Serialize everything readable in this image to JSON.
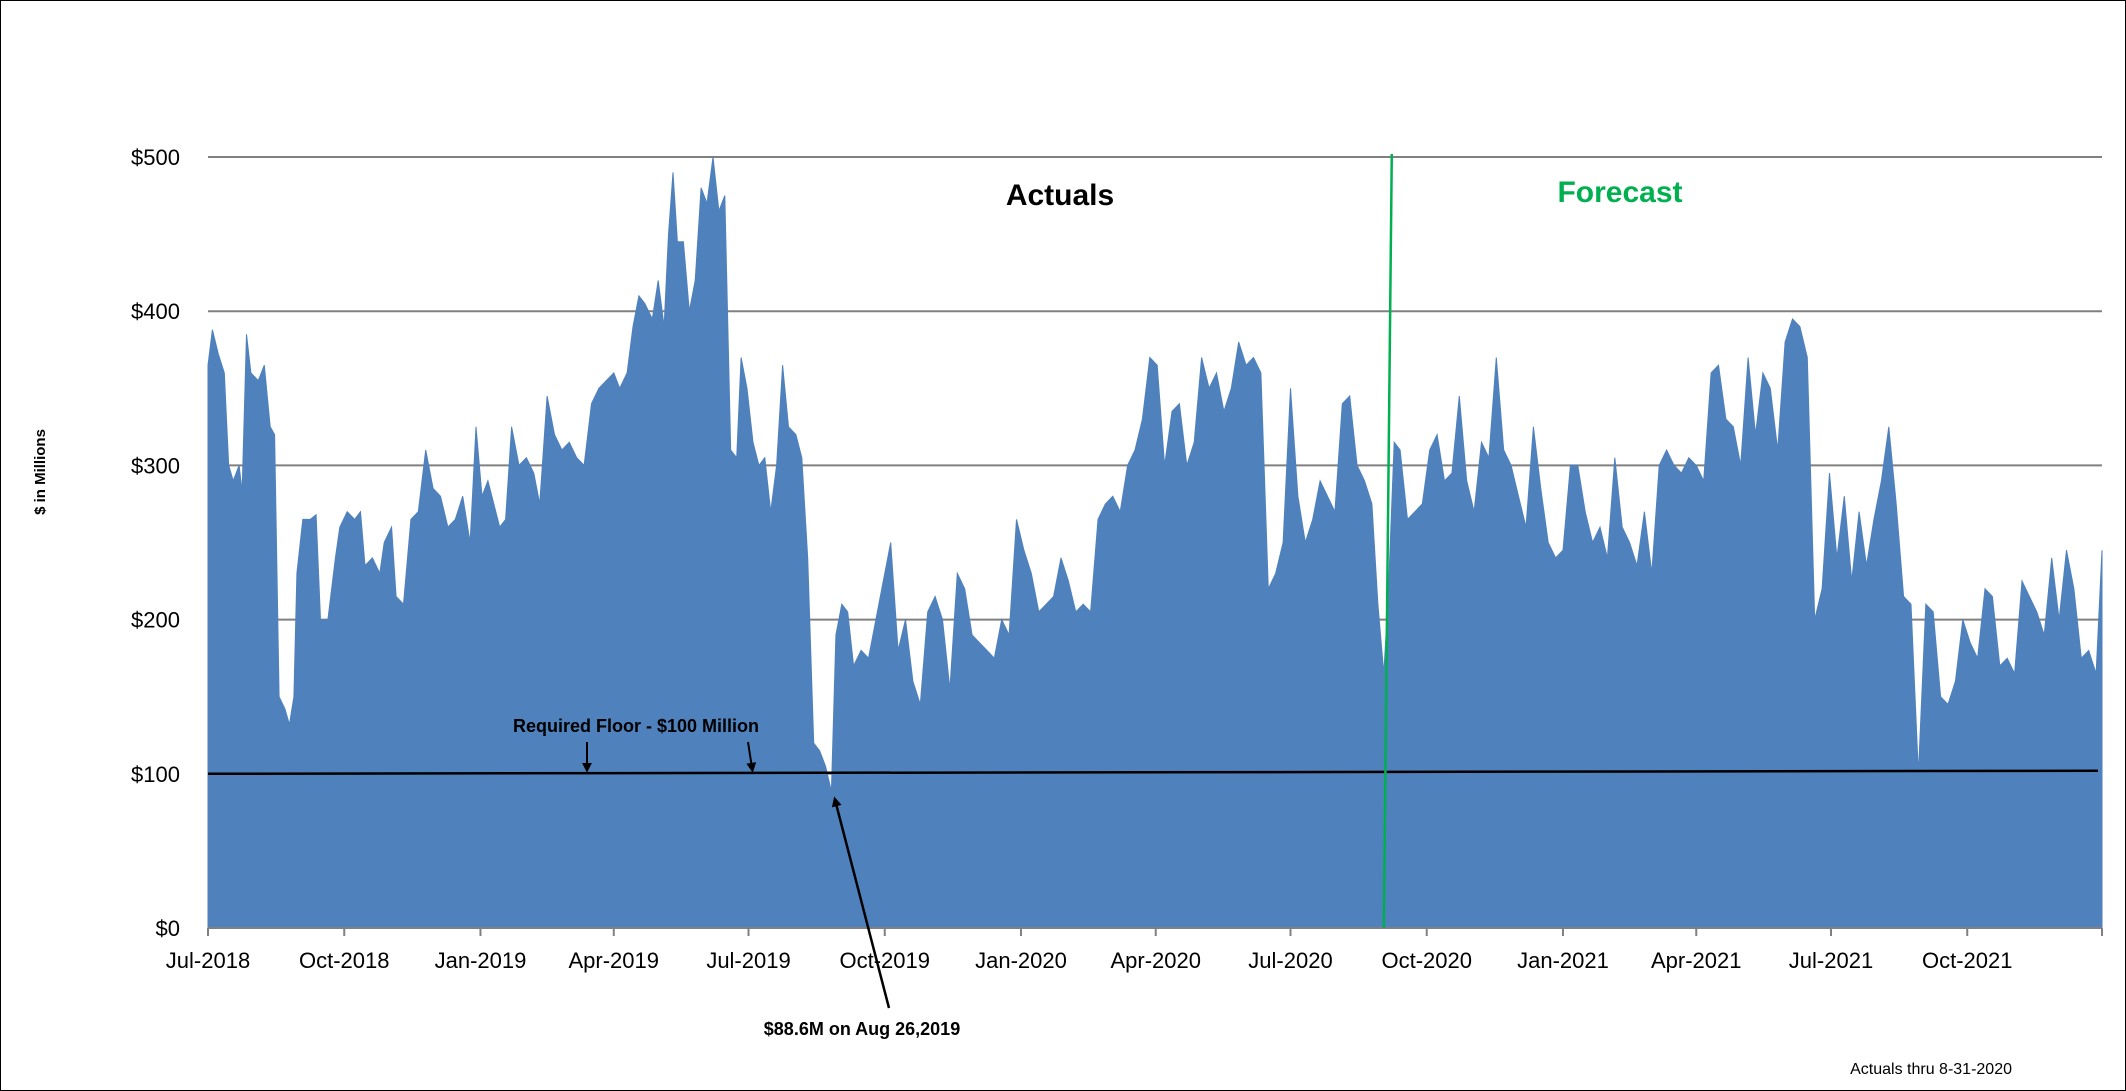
{
  "chart_data": {
    "type": "area",
    "ylabel": "$ in Millions",
    "ylim": [
      0,
      500
    ],
    "y_ticks": [
      "$0",
      "$100",
      "$200",
      "$300",
      "$400",
      "$500"
    ],
    "x_range": [
      "2018-07-01",
      "2021-12-31"
    ],
    "x_ticks": [
      "Jul-2018",
      "Oct-2018",
      "Jan-2019",
      "Apr-2019",
      "Jul-2019",
      "Oct-2019",
      "Jan-2020",
      "Apr-2020",
      "Jul-2020",
      "Oct-2020",
      "Jan-2021",
      "Apr-2021",
      "Jul-2021",
      "Oct-2021"
    ],
    "grid": true,
    "fill_color": "#4F81BD",
    "divider_color": "#00B050",
    "series": [
      {
        "values": [
          [
            "2018-07-01",
            365
          ],
          [
            "2018-07-04",
            388
          ],
          [
            "2018-07-08",
            372
          ],
          [
            "2018-07-12",
            360
          ],
          [
            "2018-07-15",
            300
          ],
          [
            "2018-07-18",
            290
          ],
          [
            "2018-07-22",
            300
          ],
          [
            "2018-07-24",
            283
          ],
          [
            "2018-07-27",
            385
          ],
          [
            "2018-07-30",
            360
          ],
          [
            "2018-08-04",
            355
          ],
          [
            "2018-08-08",
            365
          ],
          [
            "2018-08-12",
            325
          ],
          [
            "2018-08-15",
            320
          ],
          [
            "2018-08-18",
            150
          ],
          [
            "2018-08-22",
            142
          ],
          [
            "2018-08-25",
            132
          ],
          [
            "2018-08-28",
            150
          ],
          [
            "2018-08-30",
            230
          ],
          [
            "2018-09-03",
            265
          ],
          [
            "2018-09-08",
            265
          ],
          [
            "2018-09-12",
            268
          ],
          [
            "2018-09-15",
            200
          ],
          [
            "2018-09-20",
            200
          ],
          [
            "2018-09-25",
            240
          ],
          [
            "2018-09-28",
            260
          ],
          [
            "2018-10-03",
            270
          ],
          [
            "2018-10-08",
            265
          ],
          [
            "2018-10-12",
            270
          ],
          [
            "2018-10-15",
            235
          ],
          [
            "2018-10-20",
            240
          ],
          [
            "2018-10-25",
            230
          ],
          [
            "2018-10-28",
            250
          ],
          [
            "2018-11-02",
            260
          ],
          [
            "2018-11-05",
            215
          ],
          [
            "2018-11-10",
            210
          ],
          [
            "2018-11-15",
            265
          ],
          [
            "2018-11-20",
            270
          ],
          [
            "2018-11-25",
            310
          ],
          [
            "2018-11-30",
            285
          ],
          [
            "2018-12-05",
            280
          ],
          [
            "2018-12-10",
            260
          ],
          [
            "2018-12-15",
            265
          ],
          [
            "2018-12-20",
            280
          ],
          [
            "2018-12-25",
            250
          ],
          [
            "2018-12-29",
            325
          ],
          [
            "2019-01-02",
            280
          ],
          [
            "2019-01-06",
            290
          ],
          [
            "2019-01-10",
            275
          ],
          [
            "2019-01-14",
            260
          ],
          [
            "2019-01-18",
            265
          ],
          [
            "2019-01-22",
            325
          ],
          [
            "2019-01-27",
            300
          ],
          [
            "2019-02-01",
            305
          ],
          [
            "2019-02-06",
            295
          ],
          [
            "2019-02-10",
            275
          ],
          [
            "2019-02-15",
            345
          ],
          [
            "2019-02-20",
            320
          ],
          [
            "2019-02-25",
            310
          ],
          [
            "2019-03-02",
            315
          ],
          [
            "2019-03-07",
            305
          ],
          [
            "2019-03-12",
            300
          ],
          [
            "2019-03-17",
            340
          ],
          [
            "2019-03-22",
            350
          ],
          [
            "2019-03-27",
            355
          ],
          [
            "2019-04-01",
            360
          ],
          [
            "2019-04-05",
            350
          ],
          [
            "2019-04-10",
            360
          ],
          [
            "2019-04-14",
            390
          ],
          [
            "2019-04-18",
            410
          ],
          [
            "2019-04-22",
            405
          ],
          [
            "2019-04-27",
            395
          ],
          [
            "2019-05-01",
            420
          ],
          [
            "2019-05-05",
            390
          ],
          [
            "2019-05-08",
            450
          ],
          [
            "2019-05-11",
            490
          ],
          [
            "2019-05-14",
            445
          ],
          [
            "2019-05-18",
            445
          ],
          [
            "2019-05-22",
            400
          ],
          [
            "2019-05-26",
            420
          ],
          [
            "2019-05-30",
            480
          ],
          [
            "2019-06-03",
            470
          ],
          [
            "2019-06-07",
            500
          ],
          [
            "2019-06-11",
            465
          ],
          [
            "2019-06-15",
            475
          ],
          [
            "2019-06-19",
            310
          ],
          [
            "2019-06-23",
            305
          ],
          [
            "2019-06-26",
            370
          ],
          [
            "2019-06-30",
            350
          ],
          [
            "2019-07-04",
            315
          ],
          [
            "2019-07-08",
            300
          ],
          [
            "2019-07-12",
            305
          ],
          [
            "2019-07-16",
            270
          ],
          [
            "2019-07-20",
            300
          ],
          [
            "2019-07-24",
            365
          ],
          [
            "2019-07-28",
            325
          ],
          [
            "2019-08-02",
            320
          ],
          [
            "2019-08-06",
            305
          ],
          [
            "2019-08-10",
            240
          ],
          [
            "2019-08-14",
            120
          ],
          [
            "2019-08-18",
            115
          ],
          [
            "2019-08-22",
            105
          ],
          [
            "2019-08-26",
            88.6
          ],
          [
            "2019-08-29",
            190
          ],
          [
            "2019-09-02",
            210
          ],
          [
            "2019-09-06",
            205
          ],
          [
            "2019-09-10",
            170
          ],
          [
            "2019-09-15",
            180
          ],
          [
            "2019-09-20",
            175
          ],
          [
            "2019-09-25",
            200
          ],
          [
            "2019-09-30",
            225
          ],
          [
            "2019-10-05",
            250
          ],
          [
            "2019-10-10",
            180
          ],
          [
            "2019-10-15",
            200
          ],
          [
            "2019-10-20",
            160
          ],
          [
            "2019-10-25",
            145
          ],
          [
            "2019-10-30",
            205
          ],
          [
            "2019-11-04",
            215
          ],
          [
            "2019-11-09",
            200
          ],
          [
            "2019-11-14",
            155
          ],
          [
            "2019-11-19",
            230
          ],
          [
            "2019-11-24",
            220
          ],
          [
            "2019-11-29",
            190
          ],
          [
            "2019-12-04",
            185
          ],
          [
            "2019-12-09",
            180
          ],
          [
            "2019-12-14",
            175
          ],
          [
            "2019-12-19",
            200
          ],
          [
            "2019-12-24",
            190
          ],
          [
            "2019-12-29",
            265
          ],
          [
            "2020-01-03",
            245
          ],
          [
            "2020-01-08",
            230
          ],
          [
            "2020-01-13",
            205
          ],
          [
            "2020-01-18",
            210
          ],
          [
            "2020-01-23",
            215
          ],
          [
            "2020-01-28",
            240
          ],
          [
            "2020-02-02",
            225
          ],
          [
            "2020-02-07",
            205
          ],
          [
            "2020-02-12",
            210
          ],
          [
            "2020-02-17",
            205
          ],
          [
            "2020-02-22",
            265
          ],
          [
            "2020-02-27",
            275
          ],
          [
            "2020-03-03",
            280
          ],
          [
            "2020-03-08",
            270
          ],
          [
            "2020-03-13",
            300
          ],
          [
            "2020-03-18",
            310
          ],
          [
            "2020-03-23",
            330
          ],
          [
            "2020-03-28",
            370
          ],
          [
            "2020-04-02",
            365
          ],
          [
            "2020-04-07",
            300
          ],
          [
            "2020-04-12",
            335
          ],
          [
            "2020-04-17",
            340
          ],
          [
            "2020-04-22",
            300
          ],
          [
            "2020-04-27",
            315
          ],
          [
            "2020-05-02",
            370
          ],
          [
            "2020-05-07",
            350
          ],
          [
            "2020-05-12",
            360
          ],
          [
            "2020-05-17",
            335
          ],
          [
            "2020-05-22",
            350
          ],
          [
            "2020-05-27",
            380
          ],
          [
            "2020-06-01",
            365
          ],
          [
            "2020-06-06",
            370
          ],
          [
            "2020-06-11",
            360
          ],
          [
            "2020-06-16",
            220
          ],
          [
            "2020-06-21",
            230
          ],
          [
            "2020-06-26",
            250
          ],
          [
            "2020-07-01",
            350
          ],
          [
            "2020-07-06",
            280
          ],
          [
            "2020-07-11",
            250
          ],
          [
            "2020-07-16",
            265
          ],
          [
            "2020-07-21",
            290
          ],
          [
            "2020-07-26",
            280
          ],
          [
            "2020-07-31",
            270
          ],
          [
            "2020-08-05",
            340
          ],
          [
            "2020-08-10",
            345
          ],
          [
            "2020-08-15",
            300
          ],
          [
            "2020-08-20",
            290
          ],
          [
            "2020-08-25",
            275
          ],
          [
            "2020-08-29",
            210
          ],
          [
            "2020-09-02",
            165
          ],
          [
            "2020-09-05",
            215
          ],
          [
            "2020-09-09",
            315
          ],
          [
            "2020-09-13",
            310
          ],
          [
            "2020-09-18",
            265
          ],
          [
            "2020-09-23",
            270
          ],
          [
            "2020-09-28",
            275
          ],
          [
            "2020-10-03",
            310
          ],
          [
            "2020-10-08",
            320
          ],
          [
            "2020-10-13",
            290
          ],
          [
            "2020-10-18",
            295
          ],
          [
            "2020-10-23",
            345
          ],
          [
            "2020-10-28",
            290
          ],
          [
            "2020-11-02",
            270
          ],
          [
            "2020-11-07",
            315
          ],
          [
            "2020-11-12",
            305
          ],
          [
            "2020-11-17",
            370
          ],
          [
            "2020-11-22",
            310
          ],
          [
            "2020-11-27",
            300
          ],
          [
            "2020-12-02",
            280
          ],
          [
            "2020-12-07",
            260
          ],
          [
            "2020-12-12",
            325
          ],
          [
            "2020-12-17",
            285
          ],
          [
            "2020-12-22",
            250
          ],
          [
            "2020-12-27",
            240
          ],
          [
            "2021-01-01",
            245
          ],
          [
            "2021-01-06",
            300
          ],
          [
            "2021-01-11",
            300
          ],
          [
            "2021-01-16",
            270
          ],
          [
            "2021-01-21",
            250
          ],
          [
            "2021-01-26",
            260
          ],
          [
            "2021-01-31",
            240
          ],
          [
            "2021-02-05",
            305
          ],
          [
            "2021-02-10",
            260
          ],
          [
            "2021-02-15",
            250
          ],
          [
            "2021-02-20",
            235
          ],
          [
            "2021-02-25",
            270
          ],
          [
            "2021-03-02",
            230
          ],
          [
            "2021-03-07",
            300
          ],
          [
            "2021-03-12",
            310
          ],
          [
            "2021-03-17",
            300
          ],
          [
            "2021-03-22",
            295
          ],
          [
            "2021-03-27",
            305
          ],
          [
            "2021-04-01",
            300
          ],
          [
            "2021-04-06",
            290
          ],
          [
            "2021-04-11",
            360
          ],
          [
            "2021-04-16",
            365
          ],
          [
            "2021-04-21",
            330
          ],
          [
            "2021-04-26",
            325
          ],
          [
            "2021-05-01",
            300
          ],
          [
            "2021-05-06",
            370
          ],
          [
            "2021-05-11",
            320
          ],
          [
            "2021-05-16",
            360
          ],
          [
            "2021-05-21",
            350
          ],
          [
            "2021-05-26",
            310
          ],
          [
            "2021-05-31",
            380
          ],
          [
            "2021-06-05",
            395
          ],
          [
            "2021-06-10",
            390
          ],
          [
            "2021-06-15",
            370
          ],
          [
            "2021-06-20",
            200
          ],
          [
            "2021-06-25",
            220
          ],
          [
            "2021-06-30",
            295
          ],
          [
            "2021-07-05",
            240
          ],
          [
            "2021-07-10",
            280
          ],
          [
            "2021-07-15",
            225
          ],
          [
            "2021-07-20",
            270
          ],
          [
            "2021-07-25",
            235
          ],
          [
            "2021-07-30",
            265
          ],
          [
            "2021-08-04",
            290
          ],
          [
            "2021-08-09",
            325
          ],
          [
            "2021-08-14",
            275
          ],
          [
            "2021-08-19",
            215
          ],
          [
            "2021-08-24",
            210
          ],
          [
            "2021-08-29",
            100
          ],
          [
            "2021-09-03",
            210
          ],
          [
            "2021-09-08",
            205
          ],
          [
            "2021-09-13",
            150
          ],
          [
            "2021-09-18",
            145
          ],
          [
            "2021-09-23",
            160
          ],
          [
            "2021-09-28",
            200
          ],
          [
            "2021-10-03",
            185
          ],
          [
            "2021-10-08",
            175
          ],
          [
            "2021-10-13",
            220
          ],
          [
            "2021-10-18",
            215
          ],
          [
            "2021-10-23",
            170
          ],
          [
            "2021-10-28",
            175
          ],
          [
            "2021-11-02",
            165
          ],
          [
            "2021-11-07",
            225
          ],
          [
            "2021-11-12",
            215
          ],
          [
            "2021-11-17",
            205
          ],
          [
            "2021-11-22",
            190
          ],
          [
            "2021-11-27",
            240
          ],
          [
            "2021-12-02",
            200
          ],
          [
            "2021-12-07",
            245
          ],
          [
            "2021-12-12",
            220
          ],
          [
            "2021-12-17",
            175
          ],
          [
            "2021-12-22",
            180
          ],
          [
            "2021-12-27",
            165
          ],
          [
            "2021-12-31",
            245
          ]
        ]
      }
    ],
    "floor": {
      "value": 100,
      "end_value": 102,
      "label": "Required Floor - $100 Million"
    },
    "divider_date": "2020-09-02",
    "region_labels": {
      "actuals": "Actuals",
      "forecast": "Forecast"
    },
    "annotation_low": {
      "date": "2019-08-26",
      "value": 88.6,
      "label": "$88.6M on Aug 26,2019"
    },
    "footnote": "Actuals thru 8-31-2020"
  }
}
